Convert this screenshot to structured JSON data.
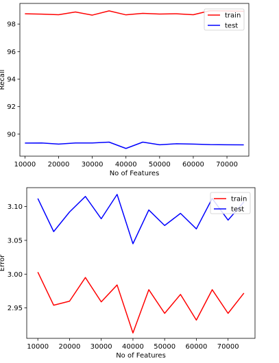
{
  "chart_data": [
    {
      "type": "line",
      "title": "",
      "xlabel": "No of Features",
      "ylabel": "Recall",
      "xlim": [
        8500,
        76500
      ],
      "ylim": [
        88.4,
        99.5
      ],
      "xticks": [
        10000,
        20000,
        30000,
        40000,
        50000,
        60000,
        70000
      ],
      "yticks": [
        90,
        92,
        94,
        96,
        98
      ],
      "x": [
        10000,
        15000,
        20000,
        25000,
        30000,
        35000,
        40000,
        45000,
        50000,
        55000,
        60000,
        65000,
        70000,
        75000
      ],
      "series": [
        {
          "name": "train",
          "color": "#ff0000",
          "values": [
            98.75,
            98.72,
            98.68,
            98.88,
            98.65,
            98.96,
            98.67,
            98.78,
            98.73,
            98.75,
            98.68,
            98.97,
            98.95,
            98.93
          ]
        },
        {
          "name": "test",
          "color": "#0000ff",
          "values": [
            89.35,
            89.36,
            89.28,
            89.36,
            89.36,
            89.42,
            88.96,
            89.42,
            89.23,
            89.3,
            89.28,
            89.24,
            89.23,
            89.22
          ]
        }
      ],
      "grid": false,
      "legend_position": "top-right"
    },
    {
      "type": "line",
      "title": "",
      "xlabel": "No of Features",
      "ylabel": "Error",
      "xlim": [
        6500,
        78500
      ],
      "ylim": [
        2.905,
        3.128
      ],
      "xticks": [
        10000,
        20000,
        30000,
        40000,
        50000,
        60000,
        70000
      ],
      "yticks": [
        2.95,
        3.0,
        3.05,
        3.1
      ],
      "ytick_format": 2,
      "x": [
        10000,
        15000,
        20000,
        25000,
        30000,
        35000,
        40000,
        45000,
        50000,
        55000,
        60000,
        65000,
        70000,
        75000
      ],
      "series": [
        {
          "name": "train",
          "color": "#ff0000",
          "values": [
            3.003,
            2.954,
            2.96,
            2.995,
            2.959,
            2.984,
            2.913,
            2.977,
            2.942,
            2.97,
            2.932,
            2.977,
            2.942,
            2.972
          ]
        },
        {
          "name": "test",
          "color": "#0000ff",
          "values": [
            3.112,
            3.063,
            3.092,
            3.115,
            3.082,
            3.118,
            3.045,
            3.095,
            3.072,
            3.09,
            3.067,
            3.112,
            3.08,
            3.107
          ]
        }
      ],
      "grid": false,
      "legend_position": "top-right"
    }
  ]
}
